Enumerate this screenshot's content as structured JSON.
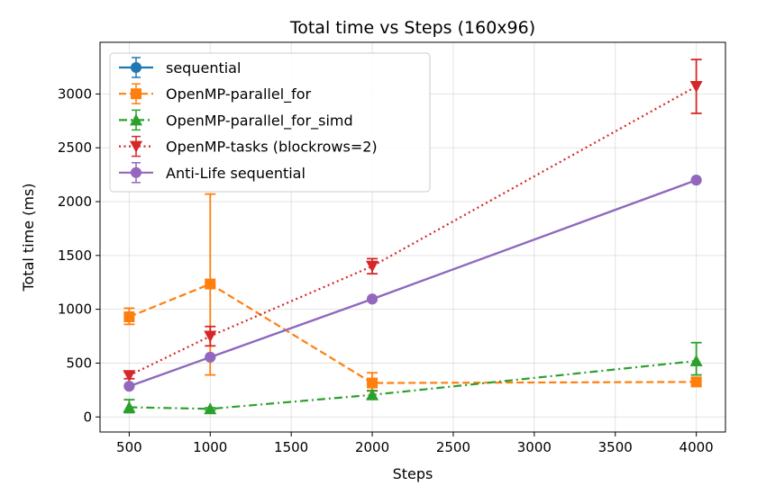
{
  "chart_data": {
    "type": "line",
    "title": "Total time vs Steps (160x96)",
    "xlabel": "Steps",
    "ylabel": "Total time (ms)",
    "xlim": [
      320,
      4180
    ],
    "ylim": [
      -140,
      3480
    ],
    "xticks": [
      500,
      1000,
      1500,
      2000,
      2500,
      3000,
      3500,
      4000
    ],
    "yticks": [
      0,
      500,
      1000,
      1500,
      2000,
      2500,
      3000
    ],
    "grid": true,
    "legend_position": "top-left",
    "series": [
      {
        "name": "sequential",
        "color": "#1f77b4",
        "marker": "circle",
        "dash": "solid",
        "points": [
          {
            "x": 500,
            "y": 285,
            "err_low": 285,
            "err_high": 285
          },
          {
            "x": 1000,
            "y": 555,
            "err_low": 555,
            "err_high": 555
          },
          {
            "x": 2000,
            "y": 1095,
            "err_low": 1095,
            "err_high": 1095
          },
          {
            "x": 4000,
            "y": 2200,
            "err_low": 2200,
            "err_high": 2200
          }
        ]
      },
      {
        "name": "OpenMP-parallel_for",
        "color": "#ff7f0e",
        "marker": "square",
        "dash": "dashed",
        "points": [
          {
            "x": 500,
            "y": 930,
            "err_low": 860,
            "err_high": 1010
          },
          {
            "x": 1000,
            "y": 1235,
            "err_low": 390,
            "err_high": 2070
          },
          {
            "x": 2000,
            "y": 315,
            "err_low": 240,
            "err_high": 410
          },
          {
            "x": 4000,
            "y": 325,
            "err_low": 285,
            "err_high": 365
          }
        ]
      },
      {
        "name": "OpenMP-parallel_for_simd",
        "color": "#2ca02c",
        "marker": "triangle-up",
        "dash": "dashdot",
        "points": [
          {
            "x": 500,
            "y": 90,
            "err_low": 40,
            "err_high": 160
          },
          {
            "x": 1000,
            "y": 75,
            "err_low": 65,
            "err_high": 85
          },
          {
            "x": 2000,
            "y": 205,
            "err_low": 170,
            "err_high": 245
          },
          {
            "x": 4000,
            "y": 520,
            "err_low": 390,
            "err_high": 690
          }
        ]
      },
      {
        "name": "OpenMP-tasks (blockrows=2)",
        "color": "#d62728",
        "marker": "triangle-down",
        "dash": "dotted",
        "points": [
          {
            "x": 500,
            "y": 385,
            "err_low": 355,
            "err_high": 415
          },
          {
            "x": 1000,
            "y": 750,
            "err_low": 660,
            "err_high": 840
          },
          {
            "x": 2000,
            "y": 1400,
            "err_low": 1330,
            "err_high": 1470
          },
          {
            "x": 4000,
            "y": 3070,
            "err_low": 2820,
            "err_high": 3320
          }
        ]
      },
      {
        "name": "Anti-Life sequential",
        "color": "#9467bd",
        "marker": "circle",
        "dash": "solid",
        "points": [
          {
            "x": 500,
            "y": 285,
            "err_low": 285,
            "err_high": 285
          },
          {
            "x": 1000,
            "y": 555,
            "err_low": 555,
            "err_high": 555
          },
          {
            "x": 2000,
            "y": 1095,
            "err_low": 1095,
            "err_high": 1095
          },
          {
            "x": 4000,
            "y": 2200,
            "err_low": 2200,
            "err_high": 2200
          }
        ]
      }
    ]
  }
}
